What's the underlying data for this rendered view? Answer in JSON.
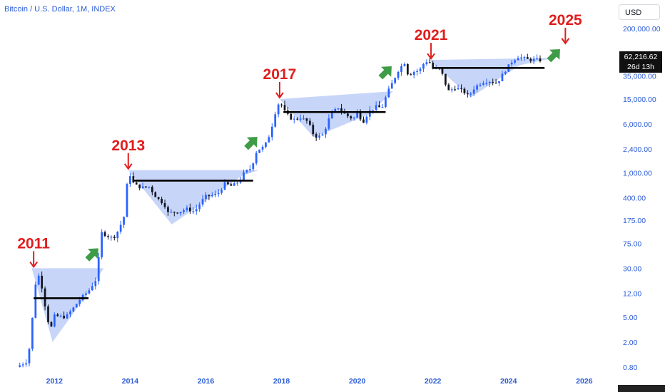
{
  "header": {
    "title": "Bitcoin / U.S. Dollar, 1M, INDEX",
    "currency": "USD"
  },
  "price_tag": {
    "price": "62,216.62",
    "countdown": "26d 13h"
  },
  "colors": {
    "up_candle": "#2962ff",
    "down_candle": "#131722",
    "triangle_fill": "#b4c7f7",
    "marker_red": "#e01d1d",
    "arrow_green": "#3e9c46",
    "axis_text": "#2b5bd7"
  },
  "chart_data": {
    "type": "candlestick",
    "title": "Bitcoin / U.S. Dollar, 1M, INDEX",
    "y_scale": "log",
    "y_ticks": [
      "200,000.00",
      "80,000.00",
      "35,000.00",
      "15,000.00",
      "6,000.00",
      "2,400.00",
      "1,000.00",
      "400.00",
      "175.00",
      "75.00",
      "30.00",
      "12.00",
      "5.00",
      "2.00",
      "0.80"
    ],
    "y_tick_values": [
      200000,
      80000,
      35000,
      15000,
      6000,
      2400,
      1000,
      400,
      175,
      75,
      30,
      12,
      5,
      2,
      0.8
    ],
    "x_ticks": [
      "2012",
      "2014",
      "2016",
      "2018",
      "2020",
      "2022",
      "2024",
      "2026"
    ],
    "x_tick_values": [
      2012,
      2014,
      2016,
      2018,
      2020,
      2022,
      2024,
      2026
    ],
    "xlim": [
      2010.9,
      2026.7
    ],
    "ylim": [
      0.7,
      260000
    ],
    "path_points": [
      [
        2011.0,
        0.8
      ],
      [
        2011.3,
        1
      ],
      [
        2011.42,
        5
      ],
      [
        2011.5,
        17
      ],
      [
        2011.6,
        24
      ],
      [
        2011.7,
        12
      ],
      [
        2011.8,
        5
      ],
      [
        2011.9,
        3.2
      ],
      [
        2012.0,
        5.2
      ],
      [
        2012.3,
        5
      ],
      [
        2012.5,
        7
      ],
      [
        2012.7,
        10
      ],
      [
        2012.9,
        13
      ],
      [
        2013.1,
        20
      ],
      [
        2013.25,
        110
      ],
      [
        2013.4,
        100
      ],
      [
        2013.55,
        90
      ],
      [
        2013.7,
        125
      ],
      [
        2013.85,
        210
      ],
      [
        2013.95,
        1100
      ],
      [
        2014.1,
        650
      ],
      [
        2014.3,
        580
      ],
      [
        2014.5,
        600
      ],
      [
        2014.7,
        400
      ],
      [
        2014.9,
        320
      ],
      [
        2015.0,
        230
      ],
      [
        2015.3,
        240
      ],
      [
        2015.5,
        265
      ],
      [
        2015.7,
        240
      ],
      [
        2015.9,
        360
      ],
      [
        2016.0,
        420
      ],
      [
        2016.3,
        450
      ],
      [
        2016.5,
        670
      ],
      [
        2016.7,
        610
      ],
      [
        2016.9,
        760
      ],
      [
        2017.0,
        970
      ],
      [
        2017.2,
        1200
      ],
      [
        2017.35,
        2300
      ],
      [
        2017.55,
        2600
      ],
      [
        2017.7,
        4300
      ],
      [
        2017.85,
        10000
      ],
      [
        2017.95,
        14000
      ],
      [
        2018.1,
        9000
      ],
      [
        2018.3,
        7000
      ],
      [
        2018.5,
        7600
      ],
      [
        2018.7,
        6500
      ],
      [
        2018.85,
        4000
      ],
      [
        2018.95,
        3700
      ],
      [
        2019.1,
        4100
      ],
      [
        2019.3,
        8600
      ],
      [
        2019.5,
        11000
      ],
      [
        2019.7,
        8300
      ],
      [
        2019.9,
        7200
      ],
      [
        2020.0,
        9300
      ],
      [
        2020.15,
        6400
      ],
      [
        2020.3,
        9400
      ],
      [
        2020.5,
        11300
      ],
      [
        2020.65,
        10800
      ],
      [
        2020.8,
        19000
      ],
      [
        2020.95,
        29000
      ],
      [
        2021.1,
        45000
      ],
      [
        2021.25,
        57000
      ],
      [
        2021.35,
        36000
      ],
      [
        2021.5,
        41000
      ],
      [
        2021.65,
        43000
      ],
      [
        2021.8,
        61000
      ],
      [
        2021.92,
        57000
      ],
      [
        2022.0,
        46000
      ],
      [
        2022.2,
        45000
      ],
      [
        2022.4,
        20000
      ],
      [
        2022.6,
        23000
      ],
      [
        2022.8,
        20000
      ],
      [
        2022.95,
        16500
      ],
      [
        2023.1,
        23000
      ],
      [
        2023.3,
        28000
      ],
      [
        2023.5,
        29000
      ],
      [
        2023.7,
        27000
      ],
      [
        2023.9,
        42000
      ],
      [
        2024.1,
        61000
      ],
      [
        2024.25,
        71000
      ],
      [
        2024.4,
        67000
      ],
      [
        2024.55,
        63000
      ],
      [
        2024.7,
        63500
      ],
      [
        2024.85,
        62216
      ]
    ],
    "support_lines": [
      {
        "x0": 2011.45,
        "x1": 2012.9,
        "y": 10
      },
      {
        "x0": 2014.1,
        "x1": 2017.25,
        "y": 750
      },
      {
        "x0": 2018.05,
        "x1": 2020.75,
        "y": 9300
      },
      {
        "x0": 2022.0,
        "x1": 2024.95,
        "y": 47000
      }
    ],
    "triangles": [
      {
        "points": [
          [
            2011.4,
            30
          ],
          [
            2013.3,
            30
          ],
          [
            2012.9,
            12.5
          ],
          [
            2011.95,
            2
          ]
        ]
      },
      {
        "points": [
          [
            2013.95,
            1100
          ],
          [
            2017.4,
            1100
          ],
          [
            2016.95,
            900
          ],
          [
            2015.1,
            150
          ]
        ]
      },
      {
        "points": [
          [
            2017.95,
            15000
          ],
          [
            2020.95,
            20000
          ],
          [
            2020.3,
            8500
          ],
          [
            2018.85,
            3700
          ]
        ]
      },
      {
        "points": [
          [
            2021.9,
            63000
          ],
          [
            2025.2,
            68000
          ],
          [
            2024.3,
            52000
          ],
          [
            2023.0,
            16000
          ]
        ]
      }
    ],
    "annotations": [
      {
        "text": "2011",
        "x": 2011.45,
        "y": 30
      },
      {
        "text": "2013",
        "x": 2013.95,
        "y": 1100
      },
      {
        "text": "2017",
        "x": 2017.95,
        "y": 15000
      },
      {
        "text": "2021",
        "x": 2021.95,
        "y": 63000
      },
      {
        "text": "2025",
        "x": 2025.5,
        "y": 110000
      }
    ],
    "green_arrows": [
      {
        "x": 2013.0,
        "y": 50
      },
      {
        "x": 2017.2,
        "y": 3000
      },
      {
        "x": 2020.75,
        "y": 40000
      },
      {
        "x": 2025.2,
        "y": 75000
      }
    ]
  }
}
